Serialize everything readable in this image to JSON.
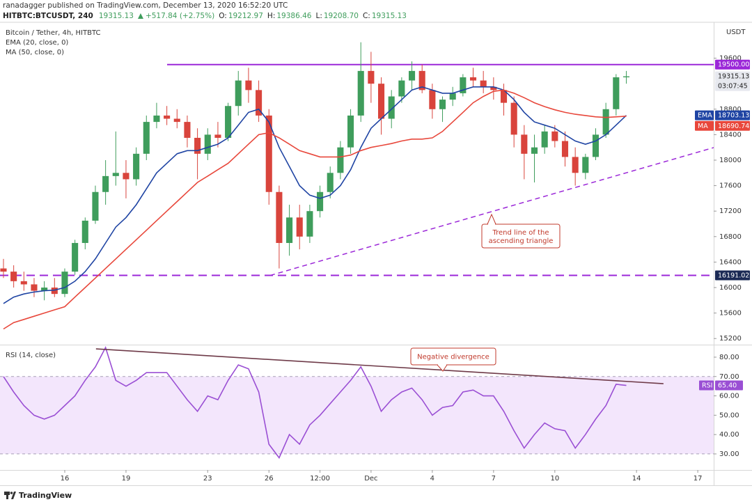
{
  "header": {
    "publisher": "ranadagger published on TradingView.com, December 13, 2020 16:52:20 UTC",
    "symbol": "HITBTC:BTCUSDT, 240",
    "price": "19315.13",
    "change": "+517.84 (+2.75%)",
    "ohlc": [
      {
        "label": "O:",
        "value": "19212.97"
      },
      {
        "label": "H:",
        "value": "19386.46"
      },
      {
        "label": "L:",
        "value": "19208.70"
      },
      {
        "label": "C:",
        "value": "19315.13"
      }
    ]
  },
  "footer": {
    "brand": "TradingView"
  },
  "chart_data": [
    {
      "type": "candlestick",
      "title": "Bitcoin / Tether, 4h, HITBTC",
      "studies": [
        "EMA (20, close, 0)",
        "MA (50, close, 0)"
      ],
      "currency": "USDT",
      "x": [
        13,
        13.5,
        14,
        14.5,
        15,
        15.5,
        16,
        16.5,
        17,
        17.5,
        18,
        18.5,
        19,
        19.5,
        20,
        20.5,
        21,
        21.5,
        22,
        22.5,
        23,
        23.5,
        24,
        24.5,
        25,
        25.5,
        26,
        26.5,
        27,
        27.5,
        28,
        28.5,
        29,
        29.5,
        30,
        30.5,
        31,
        31.5,
        32,
        32.5,
        33,
        33.5,
        34,
        34.5,
        35,
        35.5,
        36,
        36.5,
        37,
        37.5,
        38,
        38.5,
        39,
        39.5,
        40,
        40.5,
        41,
        41.5,
        42,
        42.5,
        43,
        43.5
      ],
      "open": [
        16300,
        16250,
        16100,
        16050,
        15950,
        16000,
        15900,
        16250,
        16700,
        17050,
        17500,
        17750,
        17800,
        17700,
        18100,
        18600,
        18700,
        18650,
        18600,
        18350,
        18100,
        18400,
        18350,
        18850,
        19250,
        19100,
        18700,
        17500,
        16700,
        17100,
        16800,
        17200,
        17500,
        17800,
        18200,
        18700,
        19400,
        19200,
        18650,
        19000,
        19250,
        19400,
        19100,
        18800,
        18950,
        19050,
        19300,
        19250,
        19150,
        19100,
        18900,
        18400,
        18100,
        18200,
        18450,
        18300,
        18050,
        17800,
        18050,
        18400,
        18800,
        19300
      ],
      "high": [
        16450,
        16350,
        16250,
        16150,
        16100,
        16150,
        16300,
        16750,
        17100,
        17600,
        18000,
        18450,
        18000,
        18200,
        18700,
        18900,
        18850,
        18800,
        18700,
        18500,
        18500,
        18600,
        18900,
        19400,
        19450,
        19250,
        18800,
        17600,
        17300,
        17300,
        17300,
        17600,
        17900,
        18300,
        18800,
        19850,
        19700,
        19300,
        19100,
        19300,
        19550,
        19500,
        19200,
        19000,
        19150,
        19350,
        19450,
        19400,
        19300,
        19200,
        19000,
        18550,
        18400,
        18550,
        18550,
        18450,
        18200,
        18100,
        18500,
        18900,
        19350,
        19400
      ],
      "low": [
        16150,
        16000,
        15950,
        15850,
        15800,
        15850,
        15850,
        16200,
        16600,
        17000,
        17300,
        17600,
        17400,
        17600,
        18000,
        18500,
        18550,
        18500,
        18200,
        17700,
        18000,
        18200,
        18300,
        18700,
        18900,
        18600,
        17300,
        16300,
        16500,
        16600,
        16700,
        17100,
        17400,
        17700,
        18100,
        18600,
        18900,
        18400,
        18500,
        18900,
        19100,
        19050,
        18650,
        18600,
        18850,
        19000,
        19150,
        19050,
        18950,
        18700,
        18200,
        17700,
        17650,
        18100,
        18200,
        17900,
        17600,
        17700,
        18000,
        18350,
        18700,
        19200
      ],
      "close": [
        16250,
        16100,
        16050,
        15950,
        16000,
        15900,
        16250,
        16700,
        17050,
        17500,
        17750,
        17800,
        17700,
        18100,
        18600,
        18700,
        18650,
        18600,
        18350,
        18100,
        18400,
        18350,
        18850,
        19250,
        19100,
        18700,
        17500,
        16700,
        17100,
        16800,
        17200,
        17500,
        17800,
        18200,
        18700,
        19400,
        19200,
        18650,
        19000,
        19250,
        19400,
        19100,
        18800,
        18950,
        19050,
        19300,
        19250,
        19150,
        19100,
        18900,
        18400,
        18100,
        18200,
        18450,
        18300,
        18050,
        17800,
        18050,
        18400,
        18800,
        19300,
        19315.13
      ],
      "up_color": "#3f9d5c",
      "down_color": "#d9443c",
      "series": [
        {
          "name": "EMA",
          "color": "#1f44a3",
          "values": [
            15750,
            15850,
            15900,
            15930,
            15950,
            15960,
            16000,
            16100,
            16250,
            16450,
            16700,
            16950,
            17100,
            17300,
            17550,
            17800,
            17950,
            18100,
            18150,
            18150,
            18200,
            18250,
            18350,
            18550,
            18750,
            18800,
            18600,
            18200,
            17900,
            17600,
            17450,
            17400,
            17450,
            17600,
            17850,
            18200,
            18500,
            18650,
            18800,
            18950,
            19100,
            19150,
            19100,
            19050,
            19050,
            19100,
            19150,
            19150,
            19150,
            19100,
            18950,
            18750,
            18600,
            18550,
            18500,
            18400,
            18300,
            18250,
            18300,
            18400,
            18550,
            18703.13
          ]
        },
        {
          "name": "MA",
          "color": "#e8473b",
          "values": [
            15350,
            15450,
            15500,
            15550,
            15600,
            15650,
            15700,
            15850,
            16000,
            16150,
            16300,
            16450,
            16600,
            16750,
            16900,
            17050,
            17200,
            17350,
            17500,
            17650,
            17750,
            17850,
            17950,
            18100,
            18250,
            18400,
            18430,
            18350,
            18250,
            18150,
            18100,
            18050,
            18050,
            18050,
            18080,
            18150,
            18200,
            18230,
            18260,
            18300,
            18330,
            18330,
            18350,
            18450,
            18600,
            18750,
            18900,
            19000,
            19080,
            19100,
            19050,
            18980,
            18900,
            18840,
            18790,
            18750,
            18720,
            18700,
            18680,
            18670,
            18680,
            18690.74
          ]
        }
      ],
      "xlim": [
        12.83,
        47.78
      ],
      "ylim": [
        15104,
        20131
      ],
      "yticks": [
        15200,
        15600,
        16000,
        16400,
        16800,
        17200,
        17600,
        18000,
        18400,
        18800,
        19600
      ],
      "last_price_countdown": "03:07:45",
      "resistance": {
        "value": 19500,
        "label": "19500.00",
        "color": "#9b27d8"
      },
      "support": {
        "value": 16191.02,
        "color": "#9b27d8"
      },
      "trendline": {
        "x": [
          26.06,
          47.78
        ],
        "values": [
          16190,
          18197
        ],
        "color": "#9b27d8"
      },
      "annotation": [
        "Trend line of the",
        "ascending triangle"
      ]
    },
    {
      "type": "line",
      "title": "RSI (14, close)",
      "x": [
        13,
        13.5,
        14,
        14.5,
        15,
        15.5,
        16,
        16.5,
        17,
        17.5,
        18,
        18.5,
        19,
        19.5,
        20,
        20.5,
        21,
        21.5,
        22,
        22.5,
        23,
        23.5,
        24,
        24.5,
        25,
        25.5,
        26,
        26.5,
        27,
        27.5,
        28,
        28.5,
        29,
        29.5,
        30,
        30.5,
        31,
        31.5,
        32,
        32.5,
        33,
        33.5,
        34,
        34.5,
        35,
        35.5,
        36,
        36.5,
        37,
        37.5,
        38,
        38.5,
        39,
        39.5,
        40,
        40.5,
        41,
        41.5,
        42,
        42.5,
        43,
        43.5
      ],
      "series": [
        {
          "name": "RSI",
          "color": "#9a4fd4",
          "values": [
            70,
            62,
            55,
            50,
            48,
            50,
            55,
            60,
            68,
            75,
            85,
            68,
            65,
            68,
            72,
            72,
            72,
            65,
            58,
            52,
            60,
            58,
            68,
            76,
            74,
            62,
            35,
            28,
            40,
            35,
            45,
            50,
            56,
            62,
            68,
            75,
            65,
            52,
            58,
            62,
            64,
            58,
            50,
            54,
            55,
            62,
            63,
            60,
            60,
            52,
            42,
            33,
            40,
            46,
            43,
            42,
            33,
            40,
            48,
            55,
            66,
            65.4
          ],
          "value_labels": [
            null,
            null,
            null,
            null,
            null,
            null,
            null,
            null,
            null,
            null,
            null,
            null,
            null,
            null,
            null,
            null,
            null,
            null,
            null,
            null,
            null,
            null,
            null,
            null,
            null,
            null,
            null,
            null,
            null,
            null,
            null,
            null,
            null,
            null,
            null,
            null,
            null,
            null,
            null,
            null,
            null,
            null,
            null,
            null,
            null,
            null,
            null,
            null,
            null,
            null,
            null,
            null,
            null,
            null,
            null,
            null,
            null,
            null,
            null,
            null,
            null,
            "65.40"
          ]
        }
      ],
      "band": [
        30,
        70
      ],
      "band_color": "#f3e6fc",
      "xlim": [
        12.83,
        47.78
      ],
      "ylim": [
        21.7,
        85.75
      ],
      "yticks": [
        {
          "value": 30,
          "label": "30.00"
        },
        {
          "value": 40,
          "label": "40.00"
        },
        {
          "value": 50,
          "label": "50.00"
        },
        {
          "value": 60,
          "label": "60.00"
        },
        {
          "value": 70,
          "label": "70.00"
        },
        {
          "value": 80,
          "label": "80.00"
        }
      ],
      "xticks": [
        16,
        19,
        23,
        26,
        {
          "value": 28.5,
          "label": "12:00"
        },
        {
          "value": 31,
          "label": "Dec"
        },
        {
          "value": 34,
          "label": "4"
        },
        {
          "value": 37,
          "label": "7"
        },
        {
          "value": 40,
          "label": "10"
        },
        {
          "value": 44,
          "label": "14"
        },
        {
          "value": 47,
          "label": "17"
        }
      ],
      "divergence": {
        "x": [
          17.53,
          45.32
        ],
        "values": [
          84.3,
          66.3
        ],
        "color": "#6e3a48"
      },
      "annotation": "Negative divergence"
    }
  ]
}
